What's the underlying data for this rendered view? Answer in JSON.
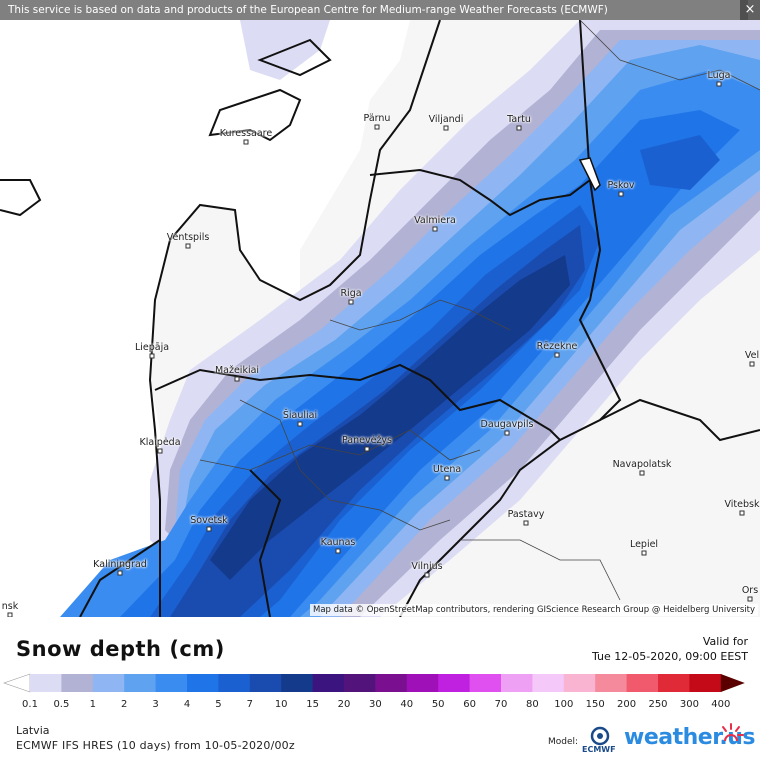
{
  "banner": "This service is based on data and products of the European Centre for Medium-range Weather Forecasts (ECMWF)",
  "close_label": "×",
  "attribution": "Map data © OpenStreetMap contributors, rendering GIScience Research Group @ Heidelberg University",
  "title": "Snow depth (cm)",
  "valid_label": "Valid for",
  "valid_time": "Tue 12-05-2020, 09:00 EEST",
  "region": "Latvia",
  "model_run": "ECMWF IFS HRES (10 days) from 10-05-2020/00z",
  "model_label": "Model:",
  "model_name": "ECMWF",
  "brand": "weather.us",
  "legend": {
    "ticks": [
      "0.1",
      "0.5",
      "1",
      "2",
      "3",
      "4",
      "5",
      "7",
      "10",
      "15",
      "20",
      "30",
      "40",
      "50",
      "60",
      "70",
      "80",
      "100",
      "150",
      "200",
      "250",
      "300",
      "400"
    ],
    "colors": [
      "#dcdcf4",
      "#b2b2d4",
      "#8fb6f2",
      "#5ea2f0",
      "#3a8cf0",
      "#1f74e8",
      "#1a60d0",
      "#1a4cb0",
      "#143a8c",
      "#3c1480",
      "#52147a",
      "#7a1090",
      "#a010b8",
      "#c020e0",
      "#e050f0",
      "#eea0f4",
      "#f4c8f8",
      "#f8b4d0",
      "#f48a9c",
      "#f05a6c",
      "#e02a38",
      "#c40a18",
      "#a0000c",
      "#800000",
      "#5a0000"
    ]
  },
  "cities": [
    {
      "name": "Kuressaare"
    },
    {
      "name": "Pärnu"
    },
    {
      "name": "Viljandi"
    },
    {
      "name": "Tartu"
    },
    {
      "name": "Luga"
    },
    {
      "name": "Pskov"
    },
    {
      "name": "Valmiera"
    },
    {
      "name": "Ventspils"
    },
    {
      "name": "Riga"
    },
    {
      "name": "Liepāja"
    },
    {
      "name": "Rēzekne"
    },
    {
      "name": "Mažeikiai"
    },
    {
      "name": "Šiauliai"
    },
    {
      "name": "Klaipėda"
    },
    {
      "name": "Panevėžys"
    },
    {
      "name": "Daugavpils"
    },
    {
      "name": "Navapolatsk"
    },
    {
      "name": "Utena"
    },
    {
      "name": "Vitebsk"
    },
    {
      "name": "Sovetsk"
    },
    {
      "name": "Pastavy"
    },
    {
      "name": "Kaunas"
    },
    {
      "name": "Lepiel"
    },
    {
      "name": "Kaliningrad"
    },
    {
      "name": "Vilnius"
    },
    {
      "name": "Vel"
    },
    {
      "name": "Ors"
    },
    {
      "name": "nsk"
    }
  ]
}
